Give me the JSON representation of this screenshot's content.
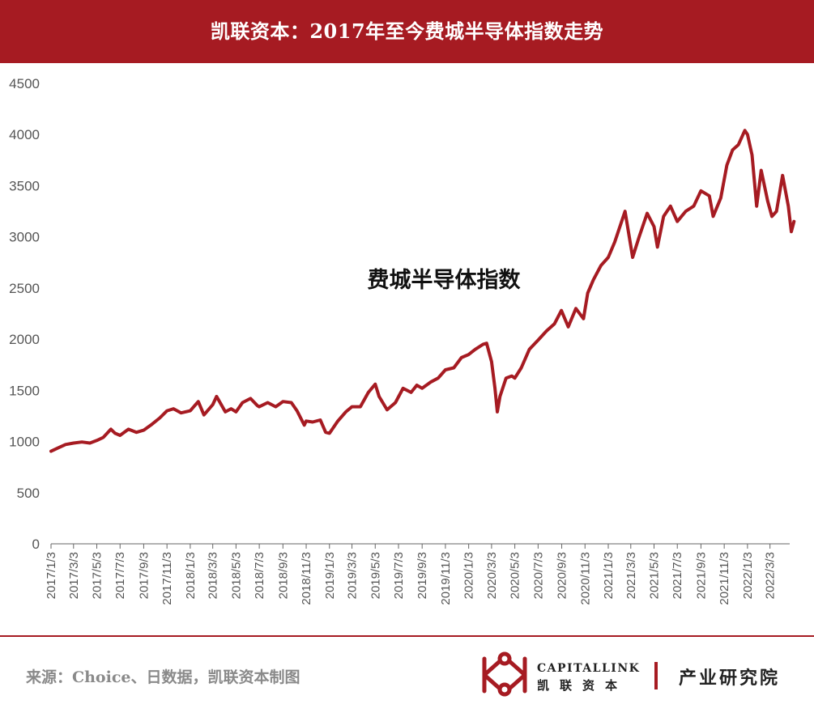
{
  "header": {
    "title": "凯联资本：2017年至今费城半导体指数走势"
  },
  "footer": {
    "source": "来源：Choice、日数据，凯联资本制图",
    "brand_en": "CAPITALLINK",
    "brand_cn": "凯联资本",
    "dept": "产业研究院"
  },
  "colors": {
    "accent": "#a61b22",
    "line": "#a61b22",
    "axis": "#666666",
    "tick_text": "#555555"
  },
  "icons": {
    "logo": "capitallink-logo-icon"
  },
  "chart_data": {
    "type": "line",
    "title": "",
    "xlabel": "",
    "ylabel": "",
    "annotation": "费城半导体指数",
    "ylim": [
      0,
      4500
    ],
    "yticks": [
      0,
      500,
      1000,
      1500,
      2000,
      2500,
      3000,
      3500,
      4000,
      4500
    ],
    "grid": false,
    "legend": "none",
    "xticks": [
      "2017/1/3",
      "2017/3/3",
      "2017/5/3",
      "2017/7/3",
      "2017/9/3",
      "2017/11/3",
      "2018/1/3",
      "2018/3/3",
      "2018/5/3",
      "2018/7/3",
      "2018/9/3",
      "2018/11/3",
      "2019/1/3",
      "2019/3/3",
      "2019/5/3",
      "2019/7/3",
      "2019/9/3",
      "2019/11/3",
      "2020/1/3",
      "2020/3/3",
      "2020/5/3",
      "2020/7/3",
      "2020/9/3",
      "2020/11/3",
      "2021/1/3",
      "2021/3/3",
      "2021/5/3",
      "2021/7/3",
      "2021/9/3",
      "2021/11/3",
      "2022/1/3",
      "2022/3/3"
    ],
    "series": [
      {
        "values": [
          [
            "2017/1/3",
            905
          ],
          [
            "2017/1/20",
            935
          ],
          [
            "2017/2/10",
            970
          ],
          [
            "2017/3/3",
            985
          ],
          [
            "2017/3/25",
            995
          ],
          [
            "2017/4/15",
            985
          ],
          [
            "2017/5/3",
            1010
          ],
          [
            "2017/5/20",
            1040
          ],
          [
            "2017/6/9",
            1120
          ],
          [
            "2017/6/20",
            1080
          ],
          [
            "2017/7/3",
            1060
          ],
          [
            "2017/7/25",
            1120
          ],
          [
            "2017/8/15",
            1090
          ],
          [
            "2017/9/3",
            1110
          ],
          [
            "2017/9/25",
            1170
          ],
          [
            "2017/10/15",
            1230
          ],
          [
            "2017/11/3",
            1300
          ],
          [
            "2017/11/20",
            1320
          ],
          [
            "2017/12/10",
            1280
          ],
          [
            "2018/1/3",
            1300
          ],
          [
            "2018/1/24",
            1390
          ],
          [
            "2018/2/8",
            1260
          ],
          [
            "2018/3/3",
            1360
          ],
          [
            "2018/3/13",
            1440
          ],
          [
            "2018/4/5",
            1290
          ],
          [
            "2018/4/20",
            1320
          ],
          [
            "2018/5/3",
            1290
          ],
          [
            "2018/5/20",
            1380
          ],
          [
            "2018/6/10",
            1420
          ],
          [
            "2018/6/28",
            1350
          ],
          [
            "2018/7/3",
            1340
          ],
          [
            "2018/7/25",
            1380
          ],
          [
            "2018/8/15",
            1340
          ],
          [
            "2018/9/3",
            1390
          ],
          [
            "2018/9/25",
            1380
          ],
          [
            "2018/10/10",
            1300
          ],
          [
            "2018/10/29",
            1160
          ],
          [
            "2018/11/3",
            1200
          ],
          [
            "2018/11/20",
            1190
          ],
          [
            "2018/12/10",
            1210
          ],
          [
            "2018/12/24",
            1090
          ],
          [
            "2019/1/3",
            1080
          ],
          [
            "2019/1/25",
            1200
          ],
          [
            "2019/2/15",
            1290
          ],
          [
            "2019/3/3",
            1340
          ],
          [
            "2019/3/25",
            1340
          ],
          [
            "2019/4/15",
            1480
          ],
          [
            "2019/5/3",
            1560
          ],
          [
            "2019/5/13",
            1440
          ],
          [
            "2019/6/3",
            1310
          ],
          [
            "2019/6/25",
            1380
          ],
          [
            "2019/7/15",
            1520
          ],
          [
            "2019/8/5",
            1480
          ],
          [
            "2019/8/20",
            1550
          ],
          [
            "2019/9/3",
            1520
          ],
          [
            "2019/9/25",
            1580
          ],
          [
            "2019/10/15",
            1620
          ],
          [
            "2019/11/3",
            1700
          ],
          [
            "2019/11/25",
            1720
          ],
          [
            "2019/12/15",
            1820
          ],
          [
            "2020/1/3",
            1850
          ],
          [
            "2020/1/20",
            1900
          ],
          [
            "2020/2/10",
            1950
          ],
          [
            "2020/2/19",
            1960
          ],
          [
            "2020/3/3",
            1780
          ],
          [
            "2020/3/12",
            1520
          ],
          [
            "2020/3/18",
            1290
          ],
          [
            "2020/3/25",
            1440
          ],
          [
            "2020/4/10",
            1620
          ],
          [
            "2020/4/25",
            1640
          ],
          [
            "2020/5/3",
            1620
          ],
          [
            "2020/5/20",
            1720
          ],
          [
            "2020/6/10",
            1900
          ],
          [
            "2020/6/25",
            1960
          ],
          [
            "2020/7/3",
            1990
          ],
          [
            "2020/7/25",
            2080
          ],
          [
            "2020/8/15",
            2150
          ],
          [
            "2020/9/2",
            2280
          ],
          [
            "2020/9/20",
            2120
          ],
          [
            "2020/10/10",
            2300
          ],
          [
            "2020/10/30",
            2200
          ],
          [
            "2020/11/10",
            2450
          ],
          [
            "2020/11/25",
            2580
          ],
          [
            "2020/12/15",
            2720
          ],
          [
            "2021/1/3",
            2800
          ],
          [
            "2021/1/20",
            2950
          ],
          [
            "2021/2/16",
            3250
          ],
          [
            "2021/3/8",
            2800
          ],
          [
            "2021/3/25",
            3000
          ],
          [
            "2021/4/15",
            3230
          ],
          [
            "2021/5/3",
            3100
          ],
          [
            "2021/5/12",
            2900
          ],
          [
            "2021/5/28",
            3200
          ],
          [
            "2021/6/15",
            3300
          ],
          [
            "2021/7/3",
            3150
          ],
          [
            "2021/7/25",
            3250
          ],
          [
            "2021/8/15",
            3300
          ],
          [
            "2021/9/3",
            3450
          ],
          [
            "2021/9/25",
            3400
          ],
          [
            "2021/10/5",
            3200
          ],
          [
            "2021/10/25",
            3380
          ],
          [
            "2021/11/10",
            3700
          ],
          [
            "2021/11/25",
            3850
          ],
          [
            "2021/12/10",
            3900
          ],
          [
            "2021/12/27",
            4040
          ],
          [
            "2022/1/3",
            4000
          ],
          [
            "2022/1/15",
            3800
          ],
          [
            "2022/1/27",
            3300
          ],
          [
            "2022/2/8",
            3650
          ],
          [
            "2022/2/25",
            3350
          ],
          [
            "2022/3/8",
            3200
          ],
          [
            "2022/3/20",
            3250
          ],
          [
            "2022/4/5",
            3600
          ],
          [
            "2022/4/20",
            3300
          ],
          [
            "2022/4/28",
            3050
          ],
          [
            "2022/5/5",
            3150
          ]
        ]
      }
    ]
  }
}
